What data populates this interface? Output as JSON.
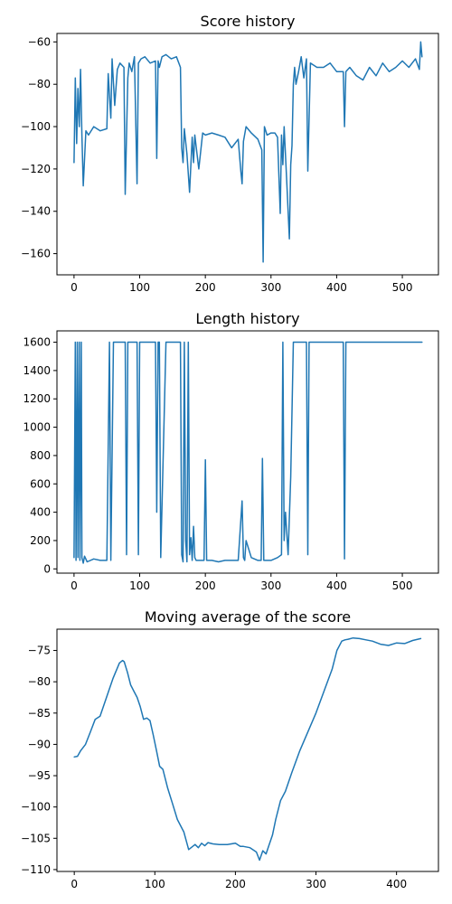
{
  "chart_data": [
    {
      "type": "line",
      "title": "Score history",
      "xlabel": "",
      "ylabel": "",
      "xlim": [
        -26,
        555
      ],
      "ylim": [
        -170,
        -56
      ],
      "xticks": [
        0,
        100,
        200,
        300,
        400,
        500
      ],
      "yticks": [
        -160,
        -140,
        -120,
        -100,
        -80,
        -60
      ],
      "grid": false,
      "color": "#1f77b4",
      "x": [
        0,
        2,
        4,
        6,
        8,
        10,
        12,
        14,
        18,
        22,
        30,
        40,
        50,
        52,
        56,
        58,
        62,
        66,
        70,
        76,
        78,
        82,
        84,
        88,
        92,
        96,
        98,
        102,
        108,
        116,
        124,
        126,
        128,
        130,
        134,
        140,
        148,
        156,
        162,
        164,
        166,
        168,
        172,
        176,
        180,
        182,
        184,
        190,
        196,
        200,
        210,
        220,
        230,
        240,
        250,
        254,
        256,
        258,
        262,
        270,
        280,
        286,
        288,
        290,
        294,
        300,
        306,
        310,
        314,
        316,
        318,
        320,
        324,
        328,
        330,
        332,
        334,
        336,
        338,
        342,
        346,
        350,
        354,
        356,
        360,
        370,
        380,
        390,
        400,
        410,
        412,
        414,
        420,
        430,
        440,
        450,
        460,
        470,
        480,
        490,
        500,
        510,
        520,
        526,
        528,
        530
      ],
      "y": [
        -117,
        -77,
        -108,
        -82,
        -100,
        -73,
        -104,
        -128,
        -102,
        -104,
        -100,
        -102,
        -101,
        -75,
        -96,
        -68,
        -90,
        -73,
        -70,
        -72,
        -132,
        -77,
        -70,
        -74,
        -67,
        -127,
        -70,
        -68,
        -67,
        -70,
        -69,
        -115,
        -69,
        -72,
        -67,
        -66,
        -68,
        -67,
        -72,
        -110,
        -117,
        -101,
        -113,
        -131,
        -105,
        -117,
        -104,
        -120,
        -103,
        -104,
        -103,
        -104,
        -105,
        -110,
        -106,
        -121,
        -127,
        -107,
        -100,
        -103,
        -106,
        -111,
        -164,
        -100,
        -104,
        -103,
        -103,
        -105,
        -141,
        -104,
        -118,
        -100,
        -126,
        -153,
        -118,
        -109,
        -80,
        -72,
        -80,
        -74,
        -67,
        -77,
        -68,
        -121,
        -70,
        -72,
        -72,
        -70,
        -74,
        -74,
        -100,
        -74,
        -72,
        -76,
        -78,
        -72,
        -76,
        -70,
        -74,
        -72,
        -69,
        -72,
        -68,
        -73,
        -60,
        -67
      ]
    },
    {
      "type": "line",
      "title": "Length history",
      "xlabel": "",
      "ylabel": "",
      "xlim": [
        -26,
        555
      ],
      "ylim": [
        -30,
        1680
      ],
      "xticks": [
        0,
        100,
        200,
        300,
        400,
        500
      ],
      "yticks": [
        0,
        200,
        400,
        600,
        800,
        1000,
        1200,
        1400,
        1600
      ],
      "grid": false,
      "color": "#1f77b4",
      "x": [
        0,
        2,
        3,
        5,
        6,
        8,
        9,
        11,
        12,
        14,
        16,
        20,
        30,
        40,
        50,
        54,
        56,
        60,
        70,
        78,
        80,
        82,
        84,
        90,
        96,
        98,
        100,
        110,
        124,
        126,
        128,
        130,
        132,
        140,
        150,
        162,
        164,
        166,
        168,
        170,
        172,
        174,
        176,
        178,
        180,
        182,
        184,
        186,
        190,
        198,
        200,
        202,
        210,
        220,
        230,
        240,
        250,
        256,
        258,
        260,
        262,
        270,
        280,
        285,
        287,
        289,
        300,
        310,
        316,
        318,
        320,
        322,
        326,
        330,
        334,
        336,
        340,
        350,
        354,
        356,
        358,
        360,
        400,
        410,
        412,
        414,
        420,
        530
      ],
      "y": [
        80,
        1600,
        60,
        1600,
        80,
        1600,
        60,
        1600,
        80,
        40,
        90,
        50,
        70,
        60,
        60,
        1600,
        60,
        1600,
        1600,
        1600,
        100,
        1600,
        1600,
        1600,
        1600,
        100,
        1600,
        1600,
        1600,
        400,
        1600,
        1600,
        80,
        1600,
        1600,
        1600,
        100,
        50,
        1600,
        200,
        50,
        1600,
        100,
        220,
        60,
        300,
        80,
        60,
        60,
        60,
        770,
        60,
        60,
        50,
        60,
        60,
        60,
        480,
        80,
        60,
        200,
        80,
        60,
        60,
        780,
        60,
        60,
        80,
        100,
        1600,
        200,
        400,
        100,
        650,
        1600,
        1600,
        1600,
        1600,
        1600,
        100,
        1600,
        1600,
        1600,
        1600,
        70,
        1600,
        1600,
        1600
      ]
    },
    {
      "type": "line",
      "title": "Moving average of the score",
      "xlabel": "",
      "ylabel": "",
      "xlim": [
        -21.5,
        452
      ],
      "ylim": [
        -110.3,
        -71.6
      ],
      "xticks": [
        0,
        100,
        200,
        300,
        400
      ],
      "yticks": [
        -110,
        -105,
        -100,
        -95,
        -90,
        -85,
        -80,
        -75
      ],
      "grid": false,
      "color": "#1f77b4",
      "x": [
        0,
        4,
        8,
        14,
        20,
        26,
        32,
        40,
        48,
        56,
        60,
        62,
        66,
        70,
        74,
        78,
        82,
        86,
        90,
        94,
        98,
        102,
        106,
        110,
        116,
        122,
        128,
        136,
        142,
        150,
        154,
        158,
        162,
        166,
        172,
        180,
        190,
        200,
        206,
        210,
        218,
        226,
        230,
        234,
        238,
        242,
        246,
        250,
        256,
        262,
        270,
        280,
        290,
        300,
        310,
        320,
        326,
        332,
        336,
        340,
        346,
        354,
        362,
        370,
        380,
        390,
        400,
        410,
        420,
        430
      ],
      "y": [
        -92,
        -91.9,
        -91,
        -90,
        -88,
        -86,
        -85.5,
        -82.5,
        -79.5,
        -77,
        -76.6,
        -76.8,
        -78.5,
        -80.5,
        -81.5,
        -82.5,
        -84,
        -86,
        -85.8,
        -86.2,
        -88.5,
        -91,
        -93.5,
        -94,
        -97,
        -99.5,
        -102,
        -104,
        -106.8,
        -106,
        -106.5,
        -105.8,
        -106.2,
        -105.7,
        -105.9,
        -106,
        -106,
        -105.8,
        -106.3,
        -106.3,
        -106.5,
        -107.2,
        -108.5,
        -107,
        -107.5,
        -106,
        -104.5,
        -102,
        -99,
        -97.5,
        -94.5,
        -91,
        -88,
        -85,
        -81.5,
        -78,
        -75,
        -73.5,
        -73.3,
        -73.2,
        -73,
        -73.1,
        -73.3,
        -73.5,
        -74,
        -74.2,
        -73.8,
        -73.9,
        -73.4,
        -73.1
      ]
    }
  ]
}
